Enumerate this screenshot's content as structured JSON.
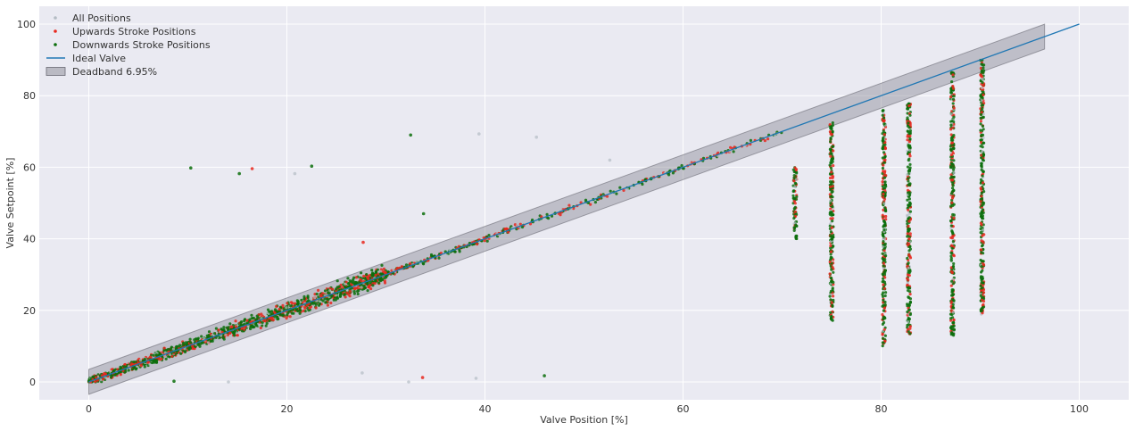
{
  "chart_data": {
    "type": "scatter",
    "xlabel": "Valve Position [%]",
    "ylabel": "Valve Setpoint [%]",
    "xlim": [
      -5,
      105
    ],
    "ylim": [
      -5,
      105
    ],
    "xticks": [
      0,
      20,
      40,
      60,
      80,
      100
    ],
    "yticks": [
      0,
      20,
      40,
      60,
      80,
      100
    ],
    "grid": true,
    "legend_position": "top-left",
    "legend": [
      {
        "key": "all",
        "label": "All Positions",
        "kind": "marker"
      },
      {
        "key": "up",
        "label": "Upwards Stroke Positions",
        "kind": "marker"
      },
      {
        "key": "down",
        "label": "Downwards Stroke Positions",
        "kind": "marker"
      },
      {
        "key": "ideal",
        "label": "Ideal Valve",
        "kind": "line"
      },
      {
        "key": "band",
        "label": "Deadband 6.95%",
        "kind": "patch"
      }
    ],
    "ideal_line": {
      "x": [
        0,
        100
      ],
      "y": [
        0,
        100
      ]
    },
    "deadband": {
      "width": 6.95,
      "x": [
        0,
        96.5
      ]
    },
    "series": [
      {
        "key": "all",
        "name": "All Positions",
        "color": "#b4bcc4"
      },
      {
        "key": "up",
        "name": "Upwards Stroke Positions",
        "color": "#e8281e"
      },
      {
        "key": "down",
        "name": "Downwards Stroke Positions",
        "color": "#0c6e0c"
      }
    ],
    "main_trend": {
      "x_start": 0,
      "x_end": 70,
      "x_dense_until": 30
    },
    "vertical_clusters": [
      {
        "x": 71.3,
        "y_min": 40,
        "y_max": 60
      },
      {
        "x": 75.0,
        "y_min": 17,
        "y_max": 73
      },
      {
        "x": 80.3,
        "y_min": 10,
        "y_max": 76
      },
      {
        "x": 82.8,
        "y_min": 13,
        "y_max": 78
      },
      {
        "x": 87.2,
        "y_min": 13,
        "y_max": 87
      },
      {
        "x": 90.2,
        "y_min": 18,
        "y_max": 90
      }
    ],
    "outliers": [
      {
        "x": 10.3,
        "y": 59.8,
        "series": "down"
      },
      {
        "x": 15.2,
        "y": 58.2,
        "series": "down"
      },
      {
        "x": 16.5,
        "y": 59.6,
        "series": "up"
      },
      {
        "x": 20.8,
        "y": 58.2,
        "series": "all"
      },
      {
        "x": 22.5,
        "y": 60.3,
        "series": "down"
      },
      {
        "x": 32.5,
        "y": 69.0,
        "series": "down"
      },
      {
        "x": 39.4,
        "y": 69.3,
        "series": "all"
      },
      {
        "x": 45.2,
        "y": 68.4,
        "series": "all"
      },
      {
        "x": 52.6,
        "y": 62.0,
        "series": "all"
      },
      {
        "x": 33.8,
        "y": 47.0,
        "series": "down"
      },
      {
        "x": 27.7,
        "y": 39.0,
        "series": "up"
      },
      {
        "x": 8.6,
        "y": 0.2,
        "series": "down"
      },
      {
        "x": 14.1,
        "y": 0.0,
        "series": "all"
      },
      {
        "x": 27.6,
        "y": 2.5,
        "series": "all"
      },
      {
        "x": 32.3,
        "y": 0.0,
        "series": "all"
      },
      {
        "x": 33.7,
        "y": 1.2,
        "series": "up"
      },
      {
        "x": 39.1,
        "y": 1.0,
        "series": "all"
      },
      {
        "x": 46.0,
        "y": 1.7,
        "series": "down"
      }
    ]
  }
}
